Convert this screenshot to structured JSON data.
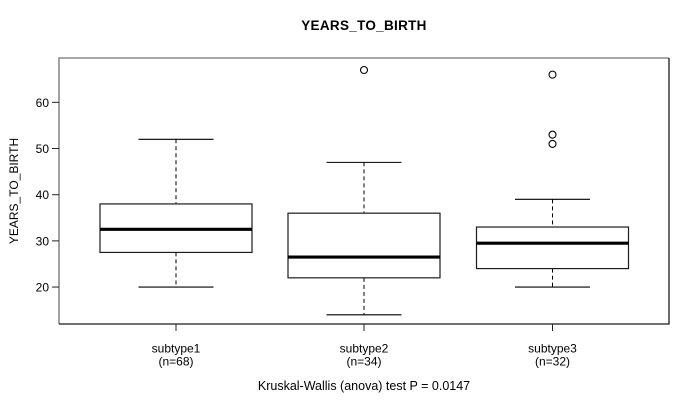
{
  "chart_data": {
    "type": "boxplot",
    "title": "YEARS_TO_BIRTH",
    "ylabel": "YEARS_TO_BIRTH",
    "xlabel": "",
    "ylim": [
      12,
      69.6
    ],
    "yticks": [
      20,
      30,
      40,
      50,
      60
    ],
    "grid": false,
    "annotation": "Kruskal-Wallis (anova) test P = 0.0147",
    "p_value": 0.0147,
    "test_name": "Kruskal-Wallis (anova) test",
    "groups": [
      {
        "label": "subtype1",
        "sublabel": "(n=68)",
        "n": 68,
        "whisker_low": 20,
        "q1": 27.5,
        "median": 32.5,
        "q3": 38,
        "whisker_high": 52,
        "outliers": []
      },
      {
        "label": "subtype2",
        "sublabel": "(n=34)",
        "n": 34,
        "whisker_low": 14,
        "q1": 22,
        "median": 26.5,
        "q3": 36,
        "whisker_high": 47,
        "outliers": [
          67
        ]
      },
      {
        "label": "subtype3",
        "sublabel": "(n=32)",
        "n": 32,
        "whisker_low": 20,
        "q1": 24,
        "median": 29.5,
        "q3": 33,
        "whisker_high": 39,
        "outliers": [
          51,
          53,
          66
        ]
      }
    ],
    "colors": {
      "background": "#ffffff",
      "box_fill": "#ffffff",
      "box_stroke": "#1c1c1c",
      "median": "#000000",
      "whisker": "#000000",
      "outlier_stroke": "#000000",
      "frame_light": "#8a8a8a",
      "frame_dark": "#1a1a1a",
      "tick": "#222222",
      "text": "#000000"
    }
  }
}
